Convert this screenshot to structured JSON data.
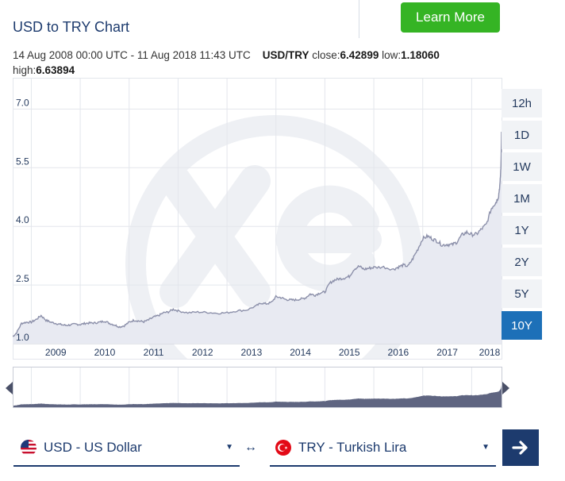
{
  "page": {
    "title": "USD to TRY Chart",
    "learn_more": "Learn More"
  },
  "summary": {
    "range": "14 Aug 2008 00:00 UTC - 11 Aug 2018 11:43 UTC",
    "pair": "USD/TRY",
    "close_label": "close:",
    "close": "6.42899",
    "low_label": "low:",
    "low": "1.18060",
    "high_label": "high:",
    "high": "6.63894"
  },
  "timeframes": [
    "12h",
    "1D",
    "1W",
    "1M",
    "1Y",
    "2Y",
    "5Y",
    "10Y"
  ],
  "active_timeframe": "10Y",
  "converter": {
    "from_label": "USD - US Dollar",
    "to_label": "TRY - Turkish Lira",
    "swap_symbol": "↔"
  },
  "colors": {
    "accent": "#1d70b8",
    "brand_green": "#35b424",
    "line": "#8c90aa",
    "area": "#e8eaf2",
    "navigator_fill": "#5f6581"
  },
  "icons": {
    "from_flag": "us-flag-icon",
    "to_flag": "turkey-flag-icon",
    "go": "arrow-right-icon",
    "handles": "navigator-handle-icon"
  },
  "chart_data": {
    "type": "area",
    "ylabel": "",
    "xlabel": "",
    "ylim": [
      1.0,
      7.8
    ],
    "yticks": [
      "1.0",
      "2.5",
      "4.0",
      "5.5",
      "7.0"
    ],
    "xticks": [
      "2009",
      "2010",
      "2011",
      "2012",
      "2013",
      "2014",
      "2015",
      "2016",
      "2017",
      "2018"
    ],
    "grid": true,
    "series": [
      {
        "x": [
          2008.62,
          2008.7,
          2008.8,
          2008.9,
          2009.0,
          2009.1,
          2009.2,
          2009.3,
          2009.4,
          2009.5,
          2009.6,
          2009.7,
          2009.8,
          2009.9,
          2010.0,
          2010.1,
          2010.2,
          2010.3,
          2010.4,
          2010.5,
          2010.6,
          2010.7,
          2010.8,
          2010.9,
          2011.0,
          2011.1,
          2011.2,
          2011.3,
          2011.4,
          2011.5,
          2011.6,
          2011.7,
          2011.8,
          2011.9,
          2012.0,
          2012.2,
          2012.4,
          2012.6,
          2012.8,
          2013.0,
          2013.2,
          2013.4,
          2013.6,
          2013.7,
          2013.8,
          2013.9,
          2014.0,
          2014.1,
          2014.2,
          2014.3,
          2014.4,
          2014.5,
          2014.6,
          2014.7,
          2014.8,
          2014.9,
          2015.0,
          2015.1,
          2015.2,
          2015.3,
          2015.4,
          2015.5,
          2015.6,
          2015.7,
          2015.8,
          2015.9,
          2016.0,
          2016.2,
          2016.4,
          2016.5,
          2016.6,
          2016.7,
          2016.8,
          2016.9,
          2017.0,
          2017.1,
          2017.2,
          2017.3,
          2017.4,
          2017.5,
          2017.6,
          2017.7,
          2017.8,
          2017.9,
          2018.0,
          2018.1,
          2018.2,
          2018.3,
          2018.4,
          2018.45,
          2018.5,
          2018.55,
          2018.58,
          2018.6,
          2018.61
        ],
        "y": [
          1.18,
          1.28,
          1.52,
          1.55,
          1.55,
          1.62,
          1.72,
          1.6,
          1.55,
          1.52,
          1.49,
          1.47,
          1.48,
          1.5,
          1.49,
          1.52,
          1.53,
          1.53,
          1.55,
          1.58,
          1.52,
          1.48,
          1.43,
          1.46,
          1.55,
          1.6,
          1.58,
          1.56,
          1.61,
          1.68,
          1.72,
          1.79,
          1.81,
          1.88,
          1.84,
          1.79,
          1.81,
          1.8,
          1.78,
          1.79,
          1.84,
          1.86,
          1.97,
          2.04,
          2.02,
          2.05,
          2.2,
          2.18,
          2.13,
          2.12,
          2.12,
          2.14,
          2.17,
          2.27,
          2.24,
          2.3,
          2.32,
          2.55,
          2.63,
          2.66,
          2.68,
          2.72,
          2.91,
          2.98,
          2.9,
          2.93,
          2.95,
          2.96,
          2.9,
          2.96,
          3.01,
          2.98,
          3.18,
          3.42,
          3.69,
          3.75,
          3.68,
          3.62,
          3.52,
          3.54,
          3.53,
          3.6,
          3.78,
          3.85,
          3.79,
          3.8,
          3.93,
          4.05,
          4.45,
          4.55,
          4.62,
          4.78,
          5.1,
          5.6,
          6.42
        ]
      }
    ]
  }
}
